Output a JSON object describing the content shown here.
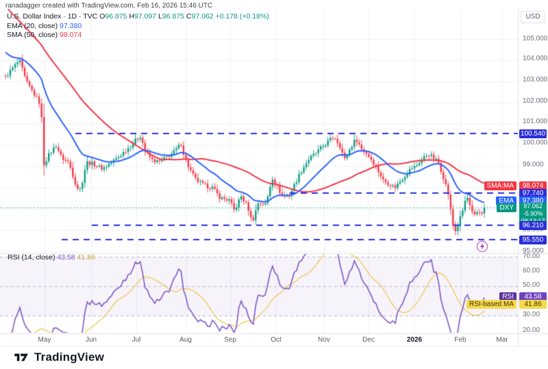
{
  "attribution": "ranadagger created with TradingView.com, Feb 16, 2026 15:46 UTC",
  "legend": {
    "symbol_line": "U.S. Dollar Index · 1D · TVC",
    "o_label": "O",
    "o_val": "96.875",
    "h_label": "H",
    "h_val": "97.097",
    "l_label": "L",
    "l_val": "96.875",
    "c_label": "C",
    "c_val": "97.062",
    "change": "+0.178 (+0.18%)",
    "ema_label": "EMA (20, close)",
    "ema_value": "97.380",
    "sma_label": "SMA (50, close)",
    "sma_value": "98.074",
    "rsi_label": "RSI (14, close)",
    "rsi_value": "43.58",
    "rsi_ma_value": "41.86"
  },
  "price_axis": {
    "currency": "USD",
    "ticks": [
      "105.000",
      "104.000",
      "103.000",
      "102.000",
      "101.000",
      "100.000",
      "99.000",
      "96.000",
      "95.000"
    ]
  },
  "rsi_axis": {
    "ticks": [
      "70.00",
      "60.00",
      "50.00",
      "30.00",
      "20.00"
    ]
  },
  "badges": {
    "level1": "100.540",
    "sma_tag": "SMA:MA",
    "sma_val": "98.074",
    "level2": "97.740",
    "ema_tag": "EMA",
    "ema_val": "97.380",
    "dxy_tag": "DXY",
    "dxy_price": "97.062",
    "dxy_change": "-5.90%",
    "dxy_countdown": "08:13:17",
    "level3": "96.210",
    "level4": "95.550",
    "rsi_tag": "RSI",
    "rsi_val": "43.58",
    "rsi_ma_tag": "RSI-based MA",
    "rsi_ma_val": "41.86"
  },
  "logo_text": "TradingView",
  "chart_data": {
    "type": "candlestick",
    "title": "U.S. Dollar Index · 1D · TVC (DXY)",
    "timeframe": "1D",
    "last_bar": {
      "open": 96.875,
      "high": 97.097,
      "low": 96.875,
      "close": 97.062,
      "change": 0.178,
      "change_pct": 0.18
    },
    "price_axis_range": [
      95.0,
      106.4
    ],
    "time_axis_range": [
      "2025-04-15",
      "2026-03-15"
    ],
    "months": [
      "May",
      "Jun",
      "Jul",
      "Aug",
      "Sep",
      "Oct",
      "Nov",
      "Dec",
      "2026",
      "Feb",
      "Mar"
    ],
    "levels": [
      100.54,
      97.74,
      96.21,
      95.55
    ],
    "price_line": 97.062,
    "indicators": {
      "ema20": 97.38,
      "sma50": 98.074,
      "rsi14": 43.58,
      "rsi_based_ma": 41.86,
      "dxy_change_pct": -5.9,
      "countdown": "08:13:17"
    },
    "rsi_range": [
      20,
      70
    ],
    "rsi_bands": [
      70,
      50,
      30
    ],
    "close_anchors": [
      [
        0.0,
        103.2
      ],
      [
        0.014,
        103.6
      ],
      [
        0.029,
        104.0
      ],
      [
        0.043,
        103.0
      ],
      [
        0.06,
        102.4
      ],
      [
        0.074,
        101.9
      ],
      [
        0.08,
        99.1
      ],
      [
        0.092,
        99.6
      ],
      [
        0.106,
        100.0
      ],
      [
        0.117,
        99.4
      ],
      [
        0.132,
        99.2
      ],
      [
        0.149,
        98.0
      ],
      [
        0.157,
        97.9
      ],
      [
        0.169,
        99.2
      ],
      [
        0.185,
        99.1
      ],
      [
        0.203,
        98.9
      ],
      [
        0.222,
        99.2
      ],
      [
        0.239,
        99.5
      ],
      [
        0.258,
        99.9
      ],
      [
        0.275,
        100.3
      ],
      [
        0.282,
        100.45
      ],
      [
        0.292,
        99.7
      ],
      [
        0.306,
        99.3
      ],
      [
        0.32,
        99.2
      ],
      [
        0.335,
        99.4
      ],
      [
        0.353,
        99.7
      ],
      [
        0.368,
        100.1
      ],
      [
        0.372,
        99.6
      ],
      [
        0.382,
        99.0
      ],
      [
        0.396,
        98.4
      ],
      [
        0.415,
        98.1
      ],
      [
        0.432,
        98.0
      ],
      [
        0.449,
        97.5
      ],
      [
        0.468,
        97.4
      ],
      [
        0.478,
        96.9
      ],
      [
        0.492,
        97.6
      ],
      [
        0.506,
        97.1
      ],
      [
        0.515,
        96.35
      ],
      [
        0.528,
        97.3
      ],
      [
        0.544,
        97.2
      ],
      [
        0.557,
        98.5
      ],
      [
        0.568,
        98.0
      ],
      [
        0.579,
        97.6
      ],
      [
        0.592,
        97.6
      ],
      [
        0.607,
        98.3
      ],
      [
        0.618,
        98.8
      ],
      [
        0.632,
        99.3
      ],
      [
        0.647,
        99.6
      ],
      [
        0.661,
        99.9
      ],
      [
        0.675,
        100.2
      ],
      [
        0.687,
        100.4
      ],
      [
        0.7,
        99.9
      ],
      [
        0.708,
        99.3
      ],
      [
        0.721,
        99.9
      ],
      [
        0.732,
        100.3
      ],
      [
        0.744,
        99.8
      ],
      [
        0.755,
        99.6
      ],
      [
        0.768,
        99.2
      ],
      [
        0.778,
        98.8
      ],
      [
        0.79,
        98.3
      ],
      [
        0.801,
        98.2
      ],
      [
        0.813,
        98.0
      ],
      [
        0.824,
        98.3
      ],
      [
        0.835,
        98.6
      ],
      [
        0.847,
        98.9
      ],
      [
        0.857,
        99.0
      ],
      [
        0.868,
        99.3
      ],
      [
        0.883,
        99.6
      ],
      [
        0.894,
        99.4
      ],
      [
        0.904,
        99.2
      ],
      [
        0.916,
        98.4
      ],
      [
        0.926,
        97.6
      ],
      [
        0.933,
        96.3
      ],
      [
        0.941,
        95.9
      ],
      [
        0.947,
        96.4
      ],
      [
        0.956,
        97.0
      ],
      [
        0.963,
        97.65
      ],
      [
        0.97,
        97.1
      ],
      [
        0.978,
        96.6
      ],
      [
        0.987,
        96.9
      ],
      [
        0.994,
        96.8
      ],
      [
        1.0,
        97.062
      ]
    ],
    "colors": {
      "up": "#089981",
      "down": "#f23645",
      "ema": "#2962ff",
      "sma": "#f23645",
      "level": "#2a2fd8",
      "price_line": "#089981",
      "rsi": "#7e57c2",
      "rsi_ma": "#eec643",
      "grid": "#eef0f6",
      "rsi_band_fill": "rgba(126,87,194,0.07)",
      "rsi_band_dash": "#b7b3cc"
    }
  }
}
